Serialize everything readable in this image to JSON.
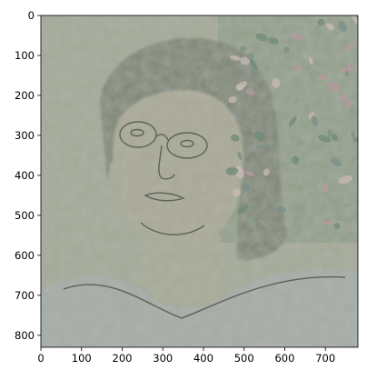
{
  "figure": {
    "image_description_icon": "stylized-portrait-image"
  },
  "chart_data": {
    "type": "image",
    "xlim": [
      0,
      780
    ],
    "ylim": [
      830,
      0
    ],
    "x_ticks": [
      0,
      100,
      200,
      300,
      400,
      500,
      600,
      700
    ],
    "y_ticks": [
      0,
      100,
      200,
      300,
      400,
      500,
      600,
      700,
      800
    ],
    "grid": false
  },
  "colors": {
    "background_tone": "#a3a896",
    "foliage_tone": "#8d9a86",
    "skin_tone": "#a9a794",
    "hair_tone": "#7d8474",
    "shirt_tone": "#a4aaa6",
    "line_tone": "#5d6257"
  }
}
